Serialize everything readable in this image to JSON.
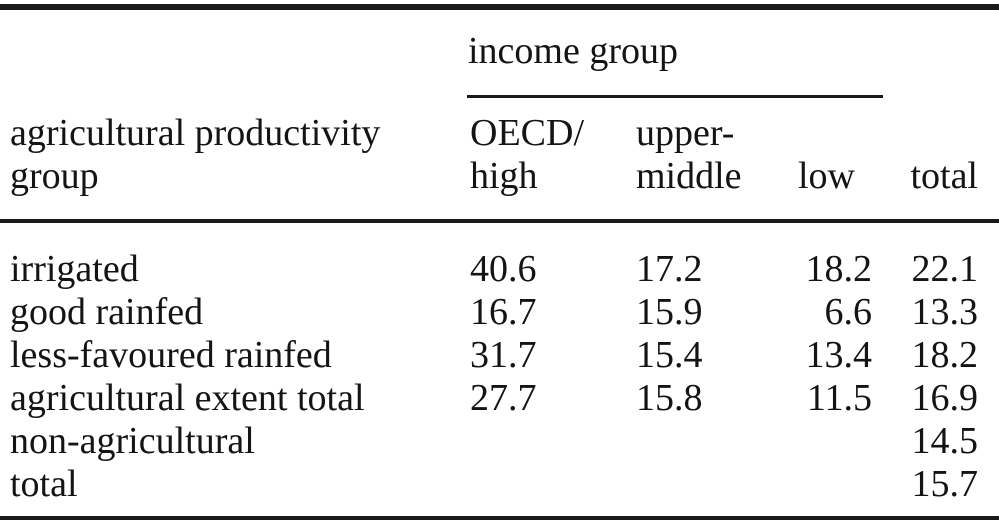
{
  "colors": {
    "background": "#ffffff",
    "text": "#141414",
    "rule": "#1a1a1a"
  },
  "table": {
    "spanner_label": "income group",
    "stub_header": {
      "line1": "agricultural productivity",
      "line2": "group"
    },
    "col_headers": {
      "oecd_high": {
        "line1": "OECD/",
        "line2": "high"
      },
      "upper_middle": {
        "line1": "upper-",
        "line2": "middle"
      },
      "low": {
        "line1": "",
        "line2": "low"
      },
      "total": {
        "line1": "",
        "line2": "total"
      }
    },
    "rows": [
      {
        "label": "irrigated",
        "oecd_high": "40.6",
        "upper_middle": "17.2",
        "low": "18.2",
        "total": "22.1"
      },
      {
        "label": "good rainfed",
        "oecd_high": "16.7",
        "upper_middle": "15.9",
        "low": "6.6",
        "total": "13.3"
      },
      {
        "label": "less-favoured rainfed",
        "oecd_high": "31.7",
        "upper_middle": "15.4",
        "low": "13.4",
        "total": "18.2"
      },
      {
        "label": "agricultural extent total",
        "oecd_high": "27.7",
        "upper_middle": "15.8",
        "low": "11.5",
        "total": "16.9"
      },
      {
        "label": "non-agricultural",
        "oecd_high": "",
        "upper_middle": "",
        "low": "",
        "total": "14.5"
      },
      {
        "label": "total",
        "oecd_high": "",
        "upper_middle": "",
        "low": "",
        "total": "15.7"
      }
    ]
  }
}
